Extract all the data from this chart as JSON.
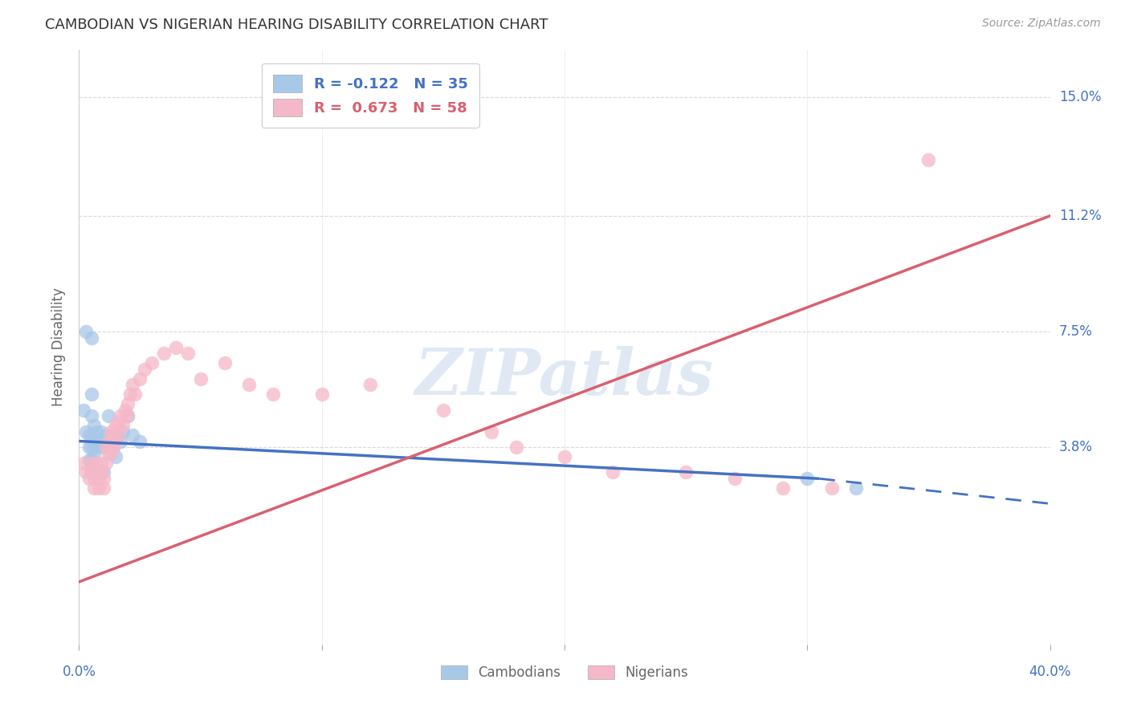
{
  "title": "CAMBODIAN VS NIGERIAN HEARING DISABILITY CORRELATION CHART",
  "source": "Source: ZipAtlas.com",
  "ylabel": "Hearing Disability",
  "ytick_labels": [
    "3.8%",
    "7.5%",
    "11.2%",
    "15.0%"
  ],
  "ytick_values": [
    0.038,
    0.075,
    0.112,
    0.15
  ],
  "xlim": [
    0.0,
    0.4
  ],
  "ylim": [
    -0.025,
    0.165
  ],
  "legend_cambodian_R": "-0.122",
  "legend_cambodian_N": "35",
  "legend_nigerian_R": "0.673",
  "legend_nigerian_N": "58",
  "cambodian_color": "#a8c8e8",
  "nigerian_color": "#f5b8c8",
  "cambodian_line_color": "#4472c4",
  "nigerian_line_color": "#d96070",
  "label_color": "#4472c4",
  "background_color": "#ffffff",
  "grid_color": "#d0d0d0",
  "cambodian_scatter": [
    [
      0.002,
      0.05
    ],
    [
      0.003,
      0.043
    ],
    [
      0.004,
      0.042
    ],
    [
      0.004,
      0.038
    ],
    [
      0.004,
      0.034
    ],
    [
      0.005,
      0.055
    ],
    [
      0.005,
      0.048
    ],
    [
      0.005,
      0.042
    ],
    [
      0.005,
      0.038
    ],
    [
      0.005,
      0.034
    ],
    [
      0.005,
      0.03
    ],
    [
      0.006,
      0.045
    ],
    [
      0.006,
      0.04
    ],
    [
      0.006,
      0.036
    ],
    [
      0.007,
      0.043
    ],
    [
      0.007,
      0.038
    ],
    [
      0.008,
      0.04
    ],
    [
      0.009,
      0.043
    ],
    [
      0.01,
      0.038
    ],
    [
      0.01,
      0.03
    ],
    [
      0.011,
      0.042
    ],
    [
      0.012,
      0.048
    ],
    [
      0.013,
      0.042
    ],
    [
      0.014,
      0.038
    ],
    [
      0.015,
      0.035
    ],
    [
      0.016,
      0.042
    ],
    [
      0.017,
      0.04
    ],
    [
      0.018,
      0.043
    ],
    [
      0.02,
      0.048
    ],
    [
      0.022,
      0.042
    ],
    [
      0.025,
      0.04
    ],
    [
      0.003,
      0.075
    ],
    [
      0.005,
      0.073
    ],
    [
      0.3,
      0.028
    ],
    [
      0.32,
      0.025
    ]
  ],
  "nigerian_scatter": [
    [
      0.002,
      0.033
    ],
    [
      0.003,
      0.03
    ],
    [
      0.004,
      0.028
    ],
    [
      0.005,
      0.033
    ],
    [
      0.005,
      0.03
    ],
    [
      0.006,
      0.028
    ],
    [
      0.006,
      0.025
    ],
    [
      0.007,
      0.033
    ],
    [
      0.007,
      0.03
    ],
    [
      0.008,
      0.028
    ],
    [
      0.008,
      0.025
    ],
    [
      0.009,
      0.033
    ],
    [
      0.009,
      0.03
    ],
    [
      0.01,
      0.028
    ],
    [
      0.01,
      0.025
    ],
    [
      0.011,
      0.038
    ],
    [
      0.011,
      0.033
    ],
    [
      0.012,
      0.04
    ],
    [
      0.012,
      0.036
    ],
    [
      0.013,
      0.043
    ],
    [
      0.013,
      0.04
    ],
    [
      0.013,
      0.036
    ],
    [
      0.014,
      0.042
    ],
    [
      0.014,
      0.038
    ],
    [
      0.015,
      0.045
    ],
    [
      0.015,
      0.04
    ],
    [
      0.016,
      0.046
    ],
    [
      0.016,
      0.042
    ],
    [
      0.017,
      0.048
    ],
    [
      0.018,
      0.045
    ],
    [
      0.019,
      0.05
    ],
    [
      0.02,
      0.052
    ],
    [
      0.02,
      0.048
    ],
    [
      0.021,
      0.055
    ],
    [
      0.022,
      0.058
    ],
    [
      0.023,
      0.055
    ],
    [
      0.025,
      0.06
    ],
    [
      0.027,
      0.063
    ],
    [
      0.03,
      0.065
    ],
    [
      0.035,
      0.068
    ],
    [
      0.04,
      0.07
    ],
    [
      0.045,
      0.068
    ],
    [
      0.05,
      0.06
    ],
    [
      0.06,
      0.065
    ],
    [
      0.07,
      0.058
    ],
    [
      0.08,
      0.055
    ],
    [
      0.1,
      0.055
    ],
    [
      0.12,
      0.058
    ],
    [
      0.15,
      0.05
    ],
    [
      0.17,
      0.043
    ],
    [
      0.18,
      0.038
    ],
    [
      0.2,
      0.035
    ],
    [
      0.22,
      0.03
    ],
    [
      0.25,
      0.03
    ],
    [
      0.27,
      0.028
    ],
    [
      0.29,
      0.025
    ],
    [
      0.35,
      0.13
    ],
    [
      0.31,
      0.025
    ]
  ],
  "cambodian_solid_line": {
    "x_start": 0.0,
    "y_start": 0.04,
    "x_end": 0.305,
    "y_end": 0.028
  },
  "cambodian_dashed_line": {
    "x_start": 0.305,
    "y_start": 0.028,
    "x_end": 0.4,
    "y_end": 0.02
  },
  "nigerian_solid_line": {
    "x_start": 0.0,
    "y_start": -0.005,
    "x_end": 0.4,
    "y_end": 0.112
  }
}
